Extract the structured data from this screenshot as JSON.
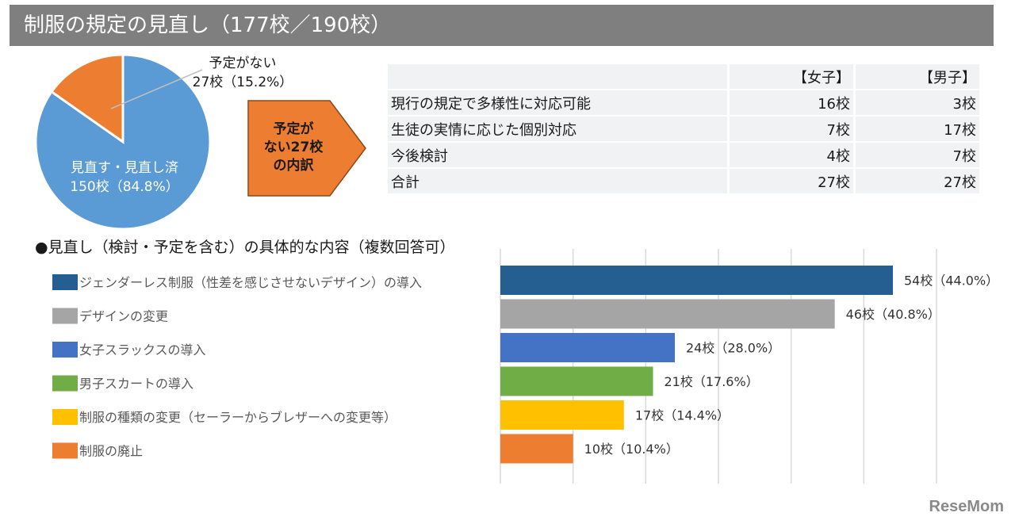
{
  "title": "制服の規定の見直し（177校／190校）",
  "pie": {
    "slices": [
      {
        "label": "見直す・見直し済",
        "count_label": "150校（84.8%）",
        "value": 150,
        "percent": 84.8,
        "color": "#5b9bd5"
      },
      {
        "label": "予定がない",
        "count_label": "27校（15.2%）",
        "value": 27,
        "percent": 15.2,
        "color": "#ed7d31"
      }
    ]
  },
  "callout": {
    "line1": "予定が",
    "line2": "ない27校",
    "line3": "の内訳",
    "color": "#ed7d31"
  },
  "breakdown_table": {
    "headers": [
      "",
      "【女子】",
      "【男子】"
    ],
    "rows": [
      [
        "現行の規定で多様性に対応可能",
        "16校",
        "3校"
      ],
      [
        "生徒の実情に応じた個別対応",
        "7校",
        "17校"
      ],
      [
        "今後検討",
        "4校",
        "7校"
      ],
      [
        "合計",
        "27校",
        "27校"
      ]
    ]
  },
  "section_heading": "●見直し（検討・予定を含む）の具体的な内容（複数回答可）",
  "chart_data": {
    "type": "bar",
    "orientation": "horizontal",
    "categories": [
      "ジェンダーレス制服（性差を感じさせないデザイン）の導入",
      "デザインの変更",
      "女子スラックスの導入",
      "男子スカートの導入",
      "制服の種類の変更（セーラーからブレザーへの変更等）",
      "制服の廃止"
    ],
    "values": [
      54,
      46,
      24,
      21,
      17,
      10
    ],
    "data_labels": [
      "54校（44.0%）",
      "46校（40.8%）",
      "24校（28.0%）",
      "21校（17.6%）",
      "17校（14.4%）",
      "10校（10.4%）"
    ],
    "colors": [
      "#255e91",
      "#a5a5a5",
      "#4472c4",
      "#70ad47",
      "#ffc000",
      "#ed7d31"
    ],
    "xlim": [
      0,
      60
    ],
    "grid": true,
    "legend": "left"
  },
  "brand": "ReseMom"
}
